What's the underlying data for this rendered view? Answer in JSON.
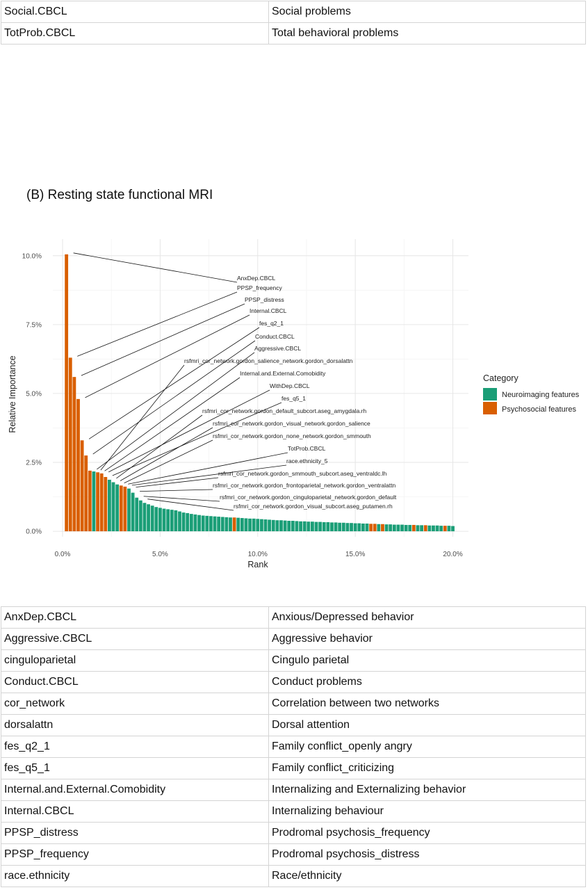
{
  "top_table": {
    "rows": [
      {
        "abbr": "Social.CBCL",
        "meaning": "Social problems"
      },
      {
        "abbr": "TotProb.CBCL",
        "meaning": "Total behavioral problems"
      }
    ]
  },
  "section_title": "(B) Resting state functional MRI",
  "chart_data": {
    "type": "bar",
    "xlabel": "Rank",
    "ylabel": "Relative Importance",
    "xlim": [
      -0.5,
      20.8
    ],
    "ylim": [
      -0.2,
      10.6
    ],
    "x_ticks": [
      0,
      5,
      10,
      15,
      20
    ],
    "x_tick_labels": [
      "0.0%",
      "5.0%",
      "10.0%",
      "15.0%",
      "20.0%"
    ],
    "y_ticks": [
      0,
      2.5,
      5,
      7.5,
      10
    ],
    "y_tick_labels": [
      "0.0%",
      "2.5%",
      "5.0%",
      "7.5%",
      "10.0%"
    ],
    "grid": true,
    "legend": {
      "title": "Category",
      "placement": "right",
      "entries": [
        {
          "label": "Neuroimaging features",
          "color": "#1b9e77"
        },
        {
          "label": "Psychosocial features",
          "color": "#d95f02"
        }
      ]
    },
    "colors": {
      "N": "#1b9e77",
      "P": "#d95f02"
    },
    "bar_width": 0.2,
    "bars": [
      {
        "x": 0.2,
        "y": 10.05,
        "c": "P"
      },
      {
        "x": 0.4,
        "y": 6.3,
        "c": "P"
      },
      {
        "x": 0.6,
        "y": 5.6,
        "c": "P"
      },
      {
        "x": 0.8,
        "y": 4.8,
        "c": "P"
      },
      {
        "x": 1.0,
        "y": 3.3,
        "c": "P"
      },
      {
        "x": 1.2,
        "y": 2.75,
        "c": "P"
      },
      {
        "x": 1.4,
        "y": 2.2,
        "c": "P"
      },
      {
        "x": 1.6,
        "y": 2.17,
        "c": "N"
      },
      {
        "x": 1.8,
        "y": 2.14,
        "c": "P"
      },
      {
        "x": 2.0,
        "y": 2.1,
        "c": "P"
      },
      {
        "x": 2.2,
        "y": 1.97,
        "c": "P"
      },
      {
        "x": 2.4,
        "y": 1.87,
        "c": "N"
      },
      {
        "x": 2.6,
        "y": 1.78,
        "c": "N"
      },
      {
        "x": 2.8,
        "y": 1.7,
        "c": "N"
      },
      {
        "x": 3.0,
        "y": 1.66,
        "c": "P"
      },
      {
        "x": 3.2,
        "y": 1.62,
        "c": "P"
      },
      {
        "x": 3.4,
        "y": 1.55,
        "c": "N"
      },
      {
        "x": 3.6,
        "y": 1.4,
        "c": "N"
      },
      {
        "x": 3.8,
        "y": 1.22,
        "c": "N"
      },
      {
        "x": 4.0,
        "y": 1.12,
        "c": "N"
      },
      {
        "x": 4.2,
        "y": 1.03,
        "c": "N"
      },
      {
        "x": 4.4,
        "y": 0.98,
        "c": "N"
      },
      {
        "x": 4.6,
        "y": 0.93,
        "c": "N"
      },
      {
        "x": 4.8,
        "y": 0.88,
        "c": "N"
      },
      {
        "x": 5.0,
        "y": 0.85,
        "c": "N"
      },
      {
        "x": 5.2,
        "y": 0.82,
        "c": "N"
      },
      {
        "x": 5.4,
        "y": 0.8,
        "c": "N"
      },
      {
        "x": 5.6,
        "y": 0.78,
        "c": "N"
      },
      {
        "x": 5.8,
        "y": 0.76,
        "c": "N"
      },
      {
        "x": 6.0,
        "y": 0.72,
        "c": "N"
      },
      {
        "x": 6.2,
        "y": 0.68,
        "c": "N"
      },
      {
        "x": 6.4,
        "y": 0.66,
        "c": "N"
      },
      {
        "x": 6.6,
        "y": 0.63,
        "c": "N"
      },
      {
        "x": 6.8,
        "y": 0.61,
        "c": "N"
      },
      {
        "x": 7.0,
        "y": 0.59,
        "c": "N"
      },
      {
        "x": 7.2,
        "y": 0.57,
        "c": "N"
      },
      {
        "x": 7.4,
        "y": 0.56,
        "c": "N"
      },
      {
        "x": 7.6,
        "y": 0.55,
        "c": "N"
      },
      {
        "x": 7.8,
        "y": 0.54,
        "c": "N"
      },
      {
        "x": 8.0,
        "y": 0.53,
        "c": "N"
      },
      {
        "x": 8.2,
        "y": 0.52,
        "c": "N"
      },
      {
        "x": 8.4,
        "y": 0.51,
        "c": "N"
      },
      {
        "x": 8.6,
        "y": 0.5,
        "c": "N"
      },
      {
        "x": 8.8,
        "y": 0.5,
        "c": "P"
      },
      {
        "x": 9.0,
        "y": 0.49,
        "c": "N"
      },
      {
        "x": 9.2,
        "y": 0.48,
        "c": "N"
      },
      {
        "x": 9.4,
        "y": 0.47,
        "c": "N"
      },
      {
        "x": 9.6,
        "y": 0.46,
        "c": "N"
      },
      {
        "x": 9.8,
        "y": 0.46,
        "c": "N"
      },
      {
        "x": 10.0,
        "y": 0.45,
        "c": "N"
      },
      {
        "x": 10.2,
        "y": 0.44,
        "c": "N"
      },
      {
        "x": 10.4,
        "y": 0.43,
        "c": "N"
      },
      {
        "x": 10.6,
        "y": 0.42,
        "c": "N"
      },
      {
        "x": 10.8,
        "y": 0.41,
        "c": "N"
      },
      {
        "x": 11.0,
        "y": 0.4,
        "c": "N"
      },
      {
        "x": 11.2,
        "y": 0.4,
        "c": "N"
      },
      {
        "x": 11.4,
        "y": 0.39,
        "c": "N"
      },
      {
        "x": 11.6,
        "y": 0.38,
        "c": "N"
      },
      {
        "x": 11.8,
        "y": 0.38,
        "c": "N"
      },
      {
        "x": 12.0,
        "y": 0.37,
        "c": "N"
      },
      {
        "x": 12.2,
        "y": 0.36,
        "c": "N"
      },
      {
        "x": 12.4,
        "y": 0.36,
        "c": "N"
      },
      {
        "x": 12.6,
        "y": 0.35,
        "c": "N"
      },
      {
        "x": 12.8,
        "y": 0.35,
        "c": "N"
      },
      {
        "x": 13.0,
        "y": 0.34,
        "c": "N"
      },
      {
        "x": 13.2,
        "y": 0.34,
        "c": "N"
      },
      {
        "x": 13.4,
        "y": 0.33,
        "c": "N"
      },
      {
        "x": 13.6,
        "y": 0.33,
        "c": "N"
      },
      {
        "x": 13.8,
        "y": 0.32,
        "c": "N"
      },
      {
        "x": 14.0,
        "y": 0.32,
        "c": "N"
      },
      {
        "x": 14.2,
        "y": 0.31,
        "c": "N"
      },
      {
        "x": 14.4,
        "y": 0.31,
        "c": "N"
      },
      {
        "x": 14.6,
        "y": 0.3,
        "c": "N"
      },
      {
        "x": 14.8,
        "y": 0.3,
        "c": "N"
      },
      {
        "x": 15.0,
        "y": 0.29,
        "c": "N"
      },
      {
        "x": 15.2,
        "y": 0.29,
        "c": "N"
      },
      {
        "x": 15.4,
        "y": 0.28,
        "c": "N"
      },
      {
        "x": 15.6,
        "y": 0.28,
        "c": "N"
      },
      {
        "x": 15.8,
        "y": 0.27,
        "c": "P"
      },
      {
        "x": 16.0,
        "y": 0.27,
        "c": "P"
      },
      {
        "x": 16.2,
        "y": 0.26,
        "c": "N"
      },
      {
        "x": 16.4,
        "y": 0.26,
        "c": "P"
      },
      {
        "x": 16.6,
        "y": 0.25,
        "c": "N"
      },
      {
        "x": 16.8,
        "y": 0.25,
        "c": "N"
      },
      {
        "x": 17.0,
        "y": 0.24,
        "c": "N"
      },
      {
        "x": 17.2,
        "y": 0.24,
        "c": "N"
      },
      {
        "x": 17.4,
        "y": 0.24,
        "c": "N"
      },
      {
        "x": 17.6,
        "y": 0.23,
        "c": "N"
      },
      {
        "x": 17.8,
        "y": 0.23,
        "c": "N"
      },
      {
        "x": 18.0,
        "y": 0.23,
        "c": "P"
      },
      {
        "x": 18.2,
        "y": 0.22,
        "c": "N"
      },
      {
        "x": 18.4,
        "y": 0.22,
        "c": "N"
      },
      {
        "x": 18.6,
        "y": 0.22,
        "c": "P"
      },
      {
        "x": 18.8,
        "y": 0.21,
        "c": "N"
      },
      {
        "x": 19.0,
        "y": 0.21,
        "c": "N"
      },
      {
        "x": 19.2,
        "y": 0.21,
        "c": "N"
      },
      {
        "x": 19.4,
        "y": 0.2,
        "c": "N"
      },
      {
        "x": 19.6,
        "y": 0.2,
        "c": "P"
      },
      {
        "x": 19.8,
        "y": 0.2,
        "c": "N"
      },
      {
        "x": 20.0,
        "y": 0.19,
        "c": "N"
      }
    ],
    "annotations": [
      {
        "label": "AnxDep.CBCL",
        "bar": 0
      },
      {
        "label": "PPSP_frequency",
        "bar": 1
      },
      {
        "label": "PPSP_distress",
        "bar": 2
      },
      {
        "label": "Internal.CBCL",
        "bar": 3
      },
      {
        "label": "fes_q2_1",
        "bar": 4
      },
      {
        "label": "Conduct.CBCL",
        "bar": 5
      },
      {
        "label": "Aggressive.CBCL",
        "bar": 6
      },
      {
        "label": "rsfmri_cor_network.gordon_salience_network.gordon_dorsalattn",
        "bar": 7
      },
      {
        "label": "Internal.and.External.Comobidity",
        "bar": 8
      },
      {
        "label": "WithDep.CBCL",
        "bar": 9
      },
      {
        "label": "fes_q5_1",
        "bar": 10
      },
      {
        "label": "rsfmri_cor_network.gordon_default_subcort.aseg_amygdala.rh",
        "bar": 11
      },
      {
        "label": "rsfmri_cor_network.gordon_visual_network.gordon_salience",
        "bar": 12
      },
      {
        "label": "rsfmri_cor_network.gordon_none_network.gordon_smmouth",
        "bar": 13
      },
      {
        "label": "TotProb.CBCL",
        "bar": 14
      },
      {
        "label": "race.ethnicity_5",
        "bar": 15
      },
      {
        "label": "rsfmri_cor_network.gordon_smmouth_subcort.aseg_ventraldc.lh",
        "bar": 16
      },
      {
        "label": "rsfmri_cor_network.gordon_frontoparietal_network.gordon_ventralattn",
        "bar": 17
      },
      {
        "label": "rsfmri_cor_network.gordon_cinguloparietal_network.gordon_default",
        "bar": 18
      },
      {
        "label": "rsfmri_cor_network.gordon_visual_subcort.aseg_putamen.rh",
        "bar": 19
      }
    ]
  },
  "bottom_table": {
    "rows": [
      {
        "abbr": "AnxDep.CBCL",
        "meaning": "Anxious/Depressed behavior"
      },
      {
        "abbr": "Aggressive.CBCL",
        "meaning": "Aggressive behavior"
      },
      {
        "abbr": "cinguloparietal",
        "meaning": "Cingulo parietal"
      },
      {
        "abbr": "Conduct.CBCL",
        "meaning": "Conduct problems"
      },
      {
        "abbr": "cor_network",
        "meaning": "Correlation between two networks"
      },
      {
        "abbr": "dorsalattn",
        "meaning": "Dorsal attention"
      },
      {
        "abbr": "fes_q2_1",
        "meaning": "Family conflict_openly angry"
      },
      {
        "abbr": "fes_q5_1",
        "meaning": "Family conflict_criticizing"
      },
      {
        "abbr": "Internal.and.External.Comobidity",
        "meaning": "Internalizing and Externalizing behavior"
      },
      {
        "abbr": "Internal.CBCL",
        "meaning": "Internalizing behaviour"
      },
      {
        "abbr": "PPSP_distress",
        "meaning": "Prodromal psychosis_frequency"
      },
      {
        "abbr": "PPSP_frequency",
        "meaning": "Prodromal psychosis_distress"
      },
      {
        "abbr": "race.ethnicity",
        "meaning": "Race/ethnicity"
      }
    ]
  }
}
